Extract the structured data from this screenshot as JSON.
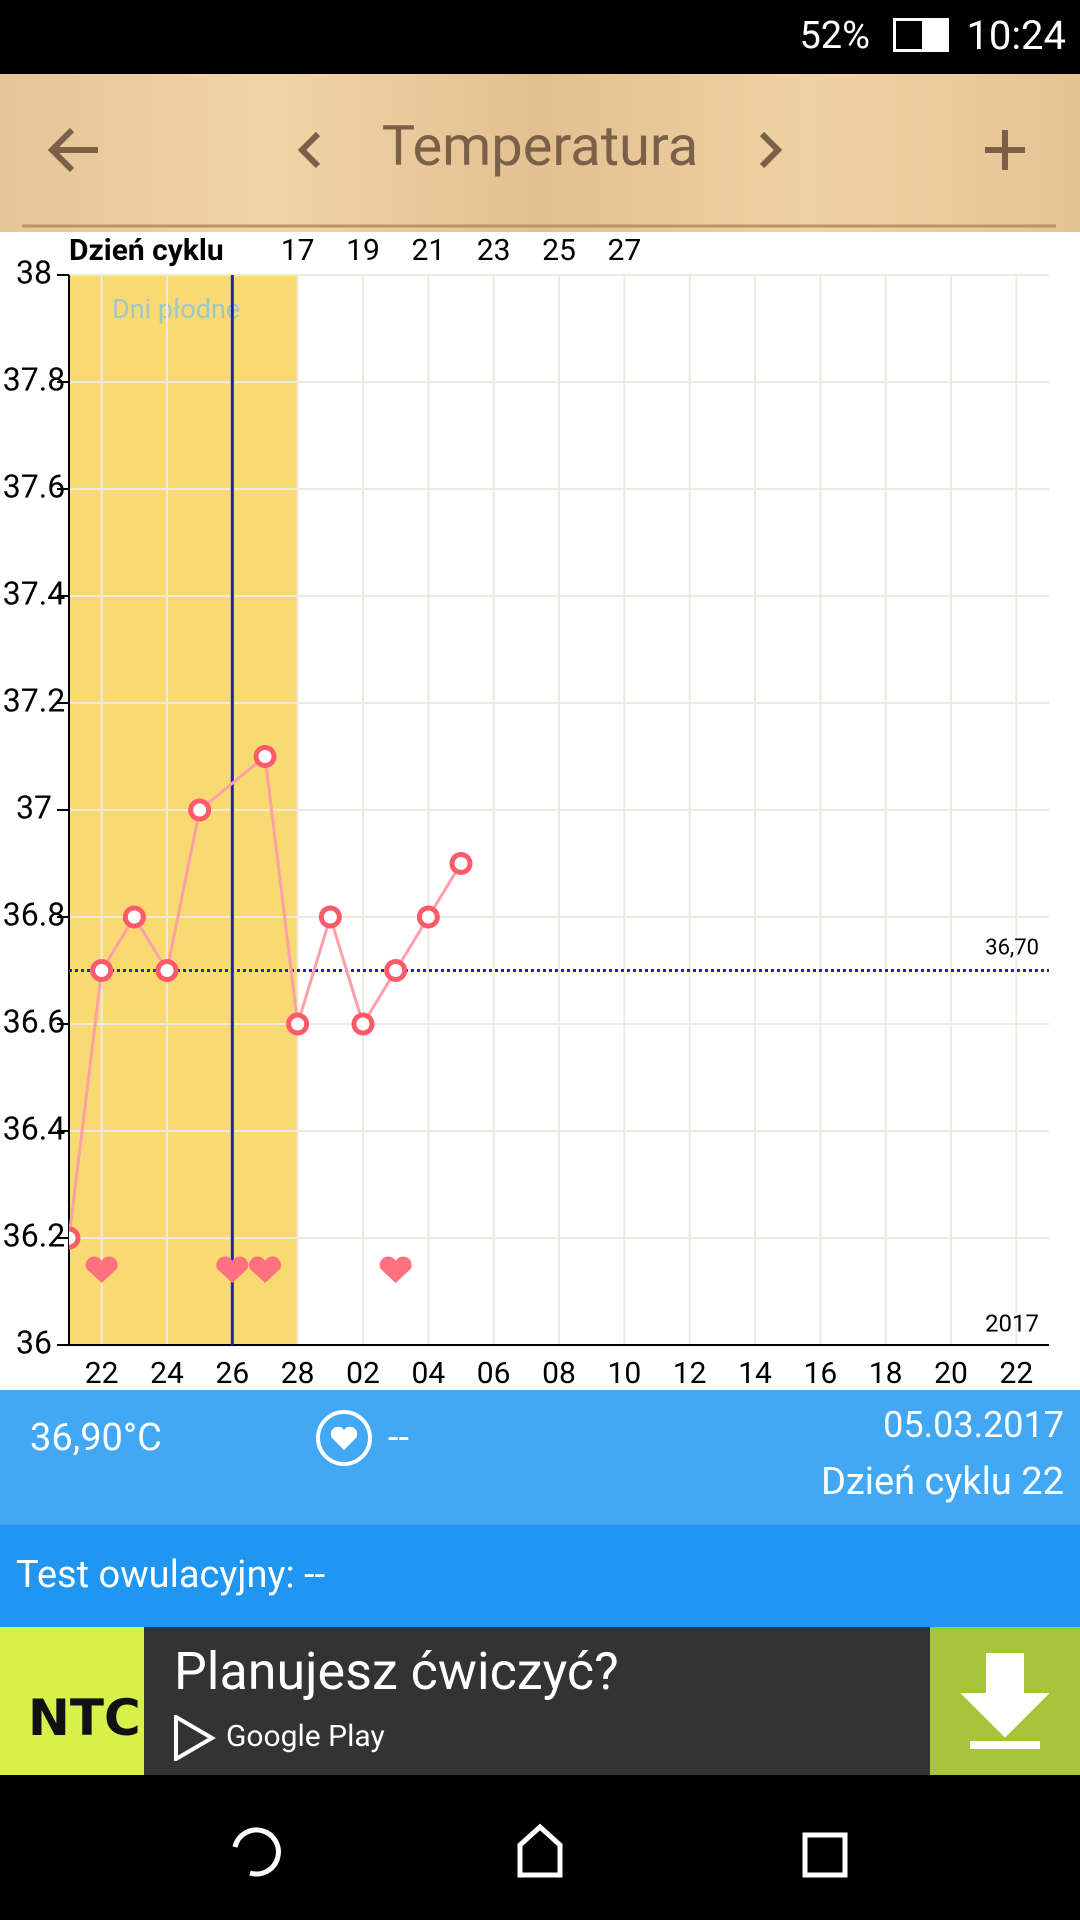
{
  "status_bar": {
    "battery": "52%",
    "time": "10:24"
  },
  "toolbar": {
    "title": "Temperatura"
  },
  "chart_data": {
    "type": "line",
    "x": [
      0,
      1,
      2,
      3,
      4,
      6,
      7,
      8,
      9,
      10,
      11,
      12
    ],
    "values": [
      36.2,
      36.7,
      36.8,
      36.7,
      37.0,
      37.1,
      36.6,
      36.8,
      36.6,
      36.7,
      36.8,
      36.9
    ],
    "color": "#ff5a6a",
    "line_color": "#ffa0a8",
    "xlim": [
      0,
      30
    ],
    "xticks": [
      {
        "value": 1,
        "label": "22"
      },
      {
        "value": 3,
        "label": "24"
      },
      {
        "value": 5,
        "label": "26"
      },
      {
        "value": 7,
        "label": "28"
      },
      {
        "value": 9,
        "label": "02"
      },
      {
        "value": 11,
        "label": "04"
      },
      {
        "value": 13,
        "label": "06"
      },
      {
        "value": 15,
        "label": "08"
      },
      {
        "value": 17,
        "label": "10"
      },
      {
        "value": 19,
        "label": "12"
      },
      {
        "value": 21,
        "label": "14"
      },
      {
        "value": 23,
        "label": "16"
      },
      {
        "value": 25,
        "label": "18"
      },
      {
        "value": 27,
        "label": "20"
      },
      {
        "value": 29,
        "label": "22"
      }
    ],
    "ylim": [
      36,
      38
    ],
    "yticks": [
      36,
      36.2,
      36.4,
      36.6,
      36.8,
      37,
      37.2,
      37.4,
      37.6,
      37.8,
      38
    ],
    "grid": true,
    "top_axis": {
      "title": "Dzień cyklu",
      "ticks": [
        {
          "value": 7,
          "label": "17"
        },
        {
          "value": 9,
          "label": "19"
        },
        {
          "value": 11,
          "label": "21"
        },
        {
          "value": 13,
          "label": "23"
        },
        {
          "value": 15,
          "label": "25"
        },
        {
          "value": 17,
          "label": "27"
        }
      ]
    },
    "fertile_window": [
      0,
      7
    ],
    "fertile_label": "Dni płodne",
    "ovulation_x": 5,
    "cover_line": {
      "value": 36.7,
      "label": "36,70"
    },
    "hearts_x": [
      1,
      5,
      6,
      10
    ],
    "year": "2017"
  },
  "info": {
    "temperature": "36,90°C",
    "intercourse": "--",
    "date": "05.03.2017",
    "cycle_day": "Dzień cyklu 22",
    "ovulation_test": "Test owulacyjny: --"
  },
  "ad": {
    "brand": "NTC",
    "headline": "Planujesz ćwiczyć?",
    "store": "Google Play"
  }
}
